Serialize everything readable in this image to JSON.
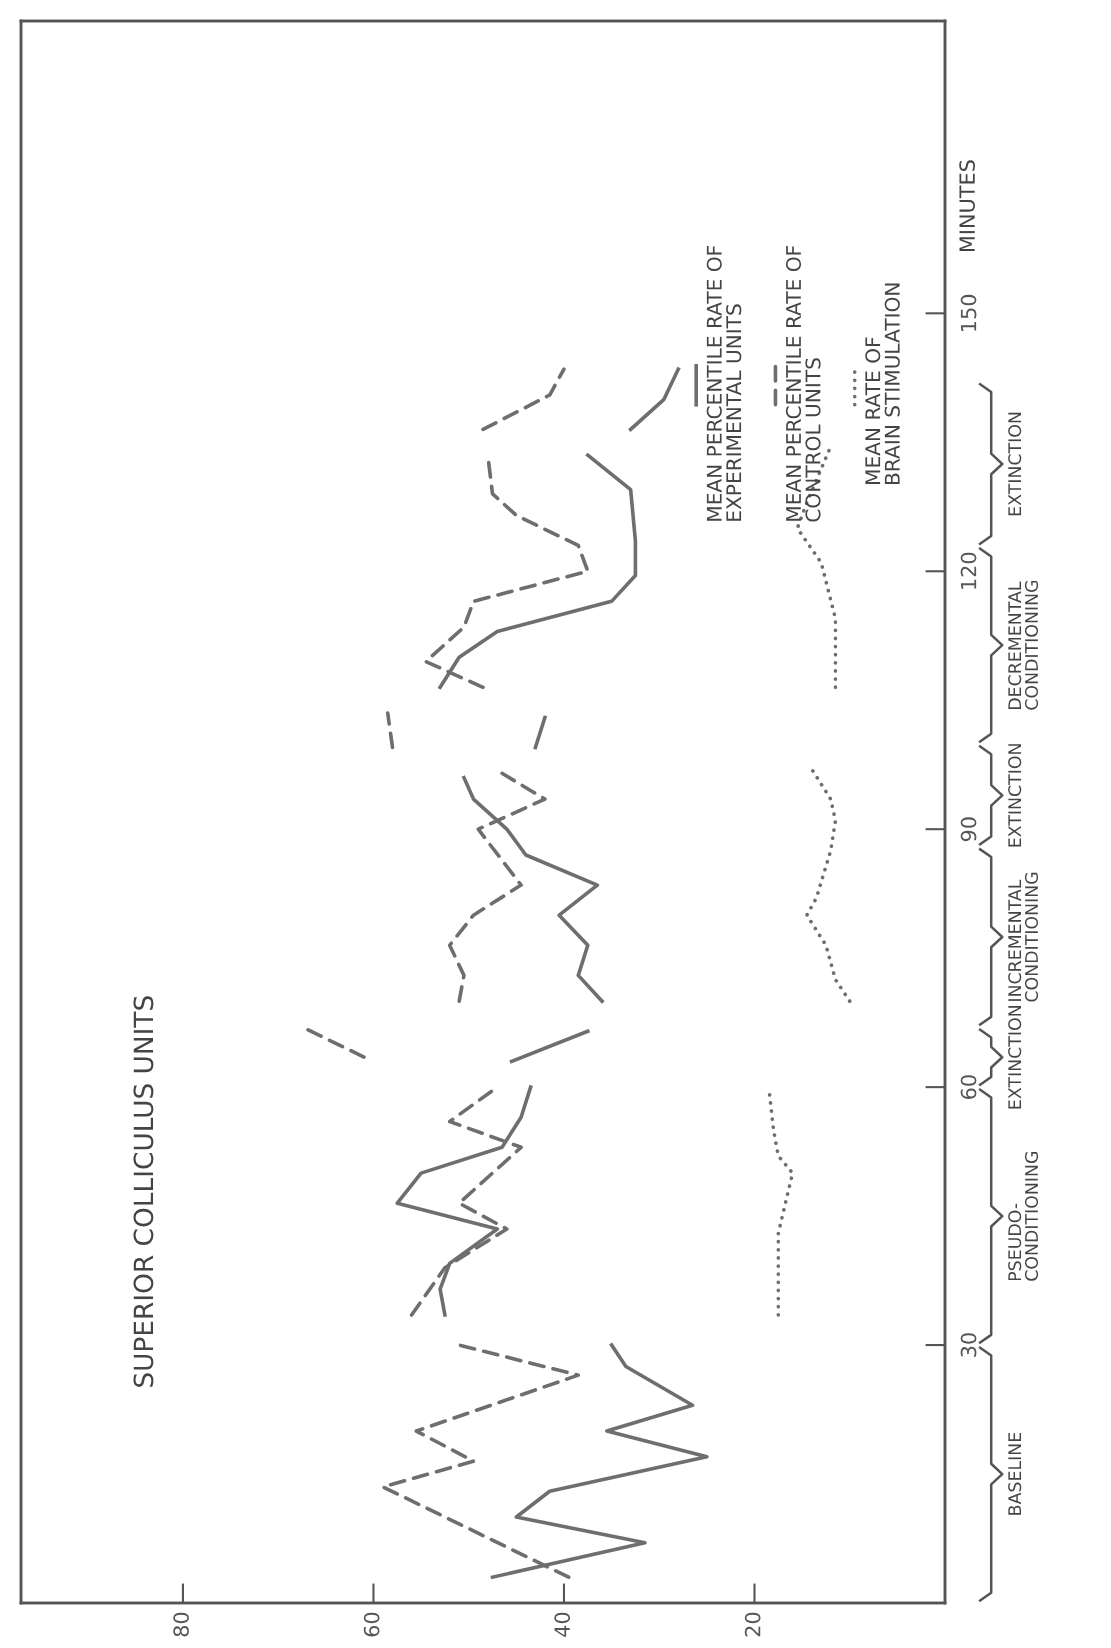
{
  "chart_data": {
    "type": "line",
    "title": "SUPERIOR COLLICULUS UNITS",
    "ylabel": "MINUTES",
    "xlim": [
      97,
      0
    ],
    "xticks": [
      20,
      40,
      60,
      80
    ],
    "ylim": [
      0,
      184
    ],
    "yticks": [
      30,
      60,
      90,
      120,
      150
    ],
    "grid": false,
    "legend": "top right",
    "marker": "none",
    "annotations": [
      "BASELINE",
      "PSEUDO-\nCONDITIONING",
      "EXTINCTION",
      "INCREMENTAL\nCONDITIONING",
      "EXTINCTION",
      "DECREMENTAL\nCONDITIONING",
      "EXTINCTION"
    ],
    "series": [
      {
        "name": "MEAN PERCENTILE RATE OF\nEXPERIMENTAL UNITS",
        "color": "#6e6e6e",
        "line_style": "solid",
        "x": [
          47.5,
          31.5,
          45,
          41.5,
          25,
          35.5,
          26.5,
          33.5,
          35,
          null,
          52.5,
          53,
          52,
          47,
          57.5,
          55,
          46.5,
          44.5,
          43.5,
          null,
          45.5,
          37.5,
          null,
          36,
          38.5,
          37.5,
          40.5,
          36.5,
          44,
          46,
          49.5,
          50.5,
          null,
          43,
          42,
          null,
          53,
          51,
          47,
          35,
          32.5,
          32.5,
          33,
          37.5,
          null,
          33,
          29.5,
          28
        ],
        "values": [
          3,
          7,
          10,
          13,
          17,
          20,
          23,
          27.5,
          30,
          null,
          33.5,
          36.5,
          39.5,
          43.5,
          46.5,
          50,
          53,
          56.5,
          60,
          null,
          63,
          66.5,
          null,
          70,
          73,
          76.5,
          80,
          83.5,
          87,
          90,
          93.5,
          96,
          null,
          99.5,
          103,
          null,
          106.5,
          110,
          113,
          116.5,
          119.5,
          123.5,
          129.5,
          133.5,
          null,
          136.5,
          140,
          143.5
        ]
      },
      {
        "name": "MEAN PERCENTILE RATE OF\nCONTROL UNITS",
        "color": "#6e6e6e",
        "line_style": "dashed",
        "x": [
          39.5,
          59,
          49.5,
          55.5,
          38.5,
          51,
          null,
          56,
          52.5,
          46,
          51,
          44.5,
          52,
          47,
          null,
          61,
          67.5,
          null,
          51,
          50.5,
          52,
          49.5,
          44.5,
          49,
          42,
          46.5,
          null,
          58,
          58.5,
          null,
          48.5,
          54.5,
          50.5,
          49.5,
          37.5,
          38.5,
          45,
          47.5,
          48,
          null,
          48.5,
          41.5,
          40
        ],
        "values": [
          3,
          13.5,
          16.5,
          20,
          26.5,
          30,
          null,
          33.5,
          39,
          43.5,
          46.5,
          53,
          56,
          60,
          null,
          63.5,
          67,
          null,
          70,
          73,
          76.5,
          80,
          83.5,
          90,
          93.5,
          96.5,
          null,
          99.5,
          103.5,
          null,
          106.5,
          109.5,
          113.5,
          116.5,
          120,
          123,
          126.5,
          129,
          133.5,
          null,
          136.5,
          140.5,
          143.5
        ]
      },
      {
        "name": "MEAN RATE OF\nBRAIN STIMULATION",
        "color": "#6e6e6e",
        "line_style": "dotted",
        "x": [
          17.5,
          17.5,
          16,
          17.5,
          18,
          18.5,
          null,
          10,
          11.5,
          12.5,
          14.5,
          13.5,
          12,
          11.5,
          12,
          14,
          null,
          11.5,
          11.5,
          13,
          15.5,
          14.5,
          12
        ],
        "values": [
          33.5,
          43,
          50,
          52,
          55,
          60,
          null,
          70,
          72.5,
          76.5,
          80,
          82,
          87.5,
          91,
          93.5,
          97,
          null,
          106.5,
          114.5,
          121,
          125,
          128,
          134.5
        ]
      }
    ]
  }
}
